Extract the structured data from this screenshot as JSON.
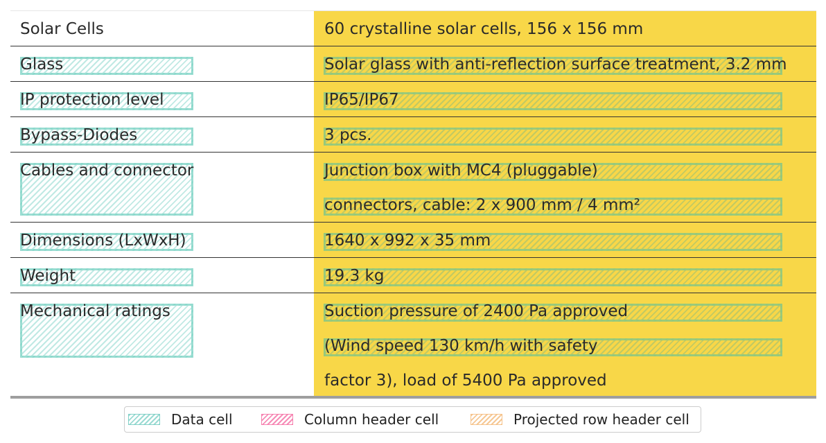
{
  "table": {
    "rows": [
      {
        "label": "Solar Cells",
        "value_lines": [
          "60 crystalline solar cells, 156 x 156 mm"
        ]
      },
      {
        "label": "Glass",
        "value_lines": [
          "Solar glass with anti-reflection surface treatment, 3.2 mm"
        ]
      },
      {
        "label": "IP protection level",
        "value_lines": [
          "IP65/IP67"
        ]
      },
      {
        "label": "Bypass-Diodes",
        "value_lines": [
          "3 pcs."
        ]
      },
      {
        "label": "Cables and connector",
        "value_lines": [
          "Junction box with MC4 (pluggable)",
          "connectors, cable: 2 x 900 mm / 4 mm²"
        ]
      },
      {
        "label": "Dimensions (LxWxH)",
        "value_lines": [
          "1640 x 992 x 35 mm"
        ]
      },
      {
        "label": "Weight",
        "value_lines": [
          "19.3 kg"
        ]
      },
      {
        "label": "Mechanical ratings",
        "value_lines": [
          "Suction pressure of 2400 Pa approved",
          "(Wind speed 130 km/h with safety",
          "factor 3), load of 5400 Pa approved"
        ]
      }
    ]
  },
  "legend": {
    "data_cell": "Data cell",
    "column_header_cell": "Column header cell",
    "projected_row_header_cell": "Projected row header cell"
  },
  "colors": {
    "value_column_background": "#f8d748",
    "data_cell_hatch": "#8cd7cd",
    "column_header_hatch": "#f578aa",
    "projected_row_header_hatch": "#f5be82"
  }
}
